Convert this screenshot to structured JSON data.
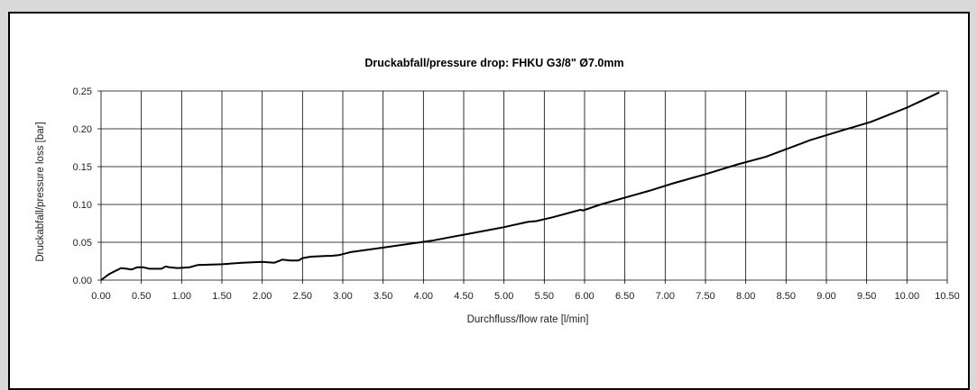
{
  "chart_data": {
    "type": "line",
    "title": "Druckabfall/pressure drop: FHKU G3/8\" Ø7.0mm",
    "xlabel": "Durchfluss/flow rate [l/min]",
    "ylabel": "Druckabfall/pressure loss [bar]",
    "xlim": [
      0,
      10.5
    ],
    "ylim": [
      0,
      0.25
    ],
    "x_ticks": [
      "0.00",
      "0.50",
      "1.00",
      "1.50",
      "2.00",
      "2.50",
      "3.00",
      "3.50",
      "4.00",
      "4.50",
      "5.00",
      "5.50",
      "6.00",
      "6.50",
      "7.00",
      "7.50",
      "8.00",
      "8.50",
      "9.00",
      "9.50",
      "10.00",
      "10.50"
    ],
    "y_ticks": [
      "0.00",
      "0.05",
      "0.10",
      "0.15",
      "0.20",
      "0.25"
    ],
    "grid": true,
    "legend": "none",
    "line_color": "#000000",
    "series": [
      {
        "x": [
          0.0,
          0.1,
          0.25,
          0.32,
          0.38,
          0.45,
          0.52,
          0.6,
          0.75,
          0.8,
          0.85,
          0.95,
          1.1,
          1.2,
          1.5,
          1.75,
          2.0,
          2.15,
          2.25,
          2.35,
          2.45,
          2.5,
          2.6,
          2.8,
          2.85,
          2.95,
          3.1,
          3.5,
          4.1,
          4.5,
          5.0,
          5.3,
          5.4,
          5.6,
          5.95,
          5.98,
          6.2,
          6.5,
          6.8,
          7.1,
          7.5,
          7.9,
          8.25,
          8.8,
          9.2,
          9.55,
          10.0,
          10.4
        ],
        "y": [
          0.0,
          0.008,
          0.016,
          0.015,
          0.014,
          0.017,
          0.017,
          0.015,
          0.015,
          0.018,
          0.017,
          0.016,
          0.017,
          0.02,
          0.021,
          0.023,
          0.024,
          0.023,
          0.027,
          0.026,
          0.026,
          0.029,
          0.031,
          0.032,
          0.032,
          0.033,
          0.037,
          0.043,
          0.052,
          0.06,
          0.07,
          0.077,
          0.078,
          0.083,
          0.093,
          0.092,
          0.1,
          0.109,
          0.118,
          0.128,
          0.14,
          0.153,
          0.163,
          0.185,
          0.198,
          0.209,
          0.228,
          0.248
        ]
      }
    ]
  }
}
